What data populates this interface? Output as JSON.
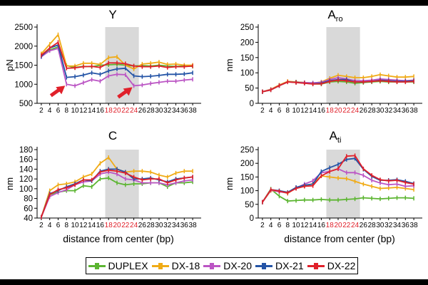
{
  "colors": {
    "DUPLEX": "#5cb531",
    "DX-18": "#f0ab16",
    "DX-20": "#bb55c4",
    "DX-21": "#2454a6",
    "DX-22": "#e0202a",
    "shade": "#d9d9d9",
    "highlight_ticks": "#e0202a",
    "arrow": "#e0202a"
  },
  "legend": [
    "DUPLEX",
    "DX-18",
    "DX-20",
    "DX-21",
    "DX-22"
  ],
  "chart_data": [
    {
      "id": "Y",
      "type": "line",
      "title": "Y",
      "title_sub": "",
      "xlabel": "",
      "ylabel": "pN",
      "categories": [
        2,
        4,
        6,
        8,
        10,
        12,
        14,
        16,
        18,
        20,
        22,
        24,
        26,
        28,
        30,
        32,
        34,
        36,
        38
      ],
      "highlight_ticks": [
        18,
        20,
        22,
        24
      ],
      "shaded_range": [
        17.2,
        25.2
      ],
      "ylim": [
        500,
        2500
      ],
      "yticks": [
        500,
        1000,
        1500,
        2000,
        2500
      ],
      "series": [
        {
          "name": "DUPLEX",
          "values": [
            1750,
            1900,
            1980,
            1490,
            1440,
            1470,
            1460,
            1500,
            1510,
            1520,
            1500,
            1480,
            1490,
            1480,
            1500,
            1480,
            1470,
            1480,
            1470
          ]
        },
        {
          "name": "DX-18",
          "values": [
            1800,
            2050,
            2300,
            1480,
            1480,
            1550,
            1550,
            1520,
            1700,
            1720,
            1500,
            1400,
            1530,
            1550,
            1580,
            1520,
            1530,
            1500,
            1500
          ]
        },
        {
          "name": "DX-20",
          "values": [
            1720,
            1880,
            1940,
            1000,
            960,
            1040,
            1120,
            1080,
            1220,
            1260,
            1250,
            960,
            980,
            1020,
            1050,
            1080,
            1080,
            1110,
            1130
          ]
        },
        {
          "name": "DX-21",
          "values": [
            1730,
            1950,
            2030,
            1180,
            1200,
            1240,
            1300,
            1260,
            1350,
            1400,
            1420,
            1220,
            1200,
            1210,
            1230,
            1260,
            1260,
            1270,
            1300
          ]
        },
        {
          "name": "DX-22",
          "values": [
            1760,
            1950,
            2100,
            1420,
            1430,
            1460,
            1470,
            1440,
            1560,
            1560,
            1540,
            1480,
            1460,
            1460,
            1480,
            1440,
            1460,
            1460,
            1480
          ]
        }
      ],
      "arrows_at": [
        {
          "x": 8,
          "y": 1000
        },
        {
          "x": 24,
          "y": 960
        }
      ]
    },
    {
      "id": "Aro",
      "type": "line",
      "title": "A",
      "title_sub": "ro",
      "xlabel": "",
      "ylabel": "nm",
      "categories": [
        2,
        4,
        6,
        8,
        10,
        12,
        14,
        16,
        18,
        20,
        22,
        24,
        26,
        28,
        30,
        32,
        34,
        36,
        38
      ],
      "highlight_ticks": [
        18,
        20,
        22,
        24
      ],
      "shaded_range": [
        17.2,
        25.2
      ],
      "ylim": [
        0,
        250
      ],
      "yticks": [
        0,
        50,
        100,
        150,
        200,
        250
      ],
      "series": [
        {
          "name": "DUPLEX",
          "values": [
            38,
            44,
            58,
            70,
            70,
            68,
            64,
            63,
            70,
            72,
            70,
            66,
            68,
            70,
            72,
            70,
            70,
            70,
            70
          ]
        },
        {
          "name": "DX-18",
          "values": [
            38,
            46,
            60,
            72,
            70,
            68,
            66,
            70,
            82,
            92,
            88,
            84,
            84,
            88,
            94,
            90,
            86,
            86,
            88
          ]
        },
        {
          "name": "DX-20",
          "values": [
            38,
            45,
            58,
            70,
            69,
            68,
            67,
            69,
            78,
            84,
            80,
            74,
            74,
            76,
            80,
            78,
            76,
            74,
            76
          ]
        },
        {
          "name": "DX-21",
          "values": [
            38,
            44,
            58,
            70,
            69,
            66,
            64,
            66,
            74,
            78,
            78,
            70,
            70,
            72,
            76,
            74,
            72,
            72,
            74
          ]
        },
        {
          "name": "DX-22",
          "values": [
            38,
            44,
            58,
            70,
            68,
            66,
            63,
            64,
            72,
            76,
            74,
            70,
            70,
            72,
            74,
            72,
            70,
            70,
            72
          ]
        }
      ]
    },
    {
      "id": "C",
      "type": "line",
      "title": "C",
      "title_sub": "",
      "xlabel": "distance from center (bp)",
      "ylabel": "nm",
      "categories": [
        2,
        4,
        6,
        8,
        10,
        12,
        14,
        16,
        18,
        20,
        22,
        24,
        26,
        28,
        30,
        32,
        34,
        36,
        38
      ],
      "highlight_ticks": [
        18,
        20,
        22,
        24
      ],
      "shaded_range": [
        17.2,
        25.2
      ],
      "ylim": [
        40,
        180
      ],
      "yticks": [
        40,
        60,
        80,
        100,
        120,
        140,
        160,
        180
      ],
      "series": [
        {
          "name": "DUPLEX",
          "values": [
            42,
            88,
            93,
            96,
            96,
            106,
            104,
            120,
            122,
            112,
            108,
            110,
            110,
            112,
            112,
            104,
            112,
            112,
            114
          ]
        },
        {
          "name": "DX-18",
          "values": [
            42,
            96,
            108,
            110,
            114,
            124,
            130,
            152,
            164,
            140,
            134,
            136,
            136,
            134,
            128,
            124,
            132,
            136,
            136
          ]
        },
        {
          "name": "DX-20",
          "values": [
            42,
            84,
            92,
            98,
            108,
            114,
            116,
            130,
            134,
            130,
            120,
            118,
            112,
            112,
            112,
            108,
            112,
            116,
            118
          ]
        },
        {
          "name": "DX-21",
          "values": [
            42,
            90,
            96,
            104,
            110,
            118,
            116,
            136,
            140,
            140,
            134,
            120,
            120,
            122,
            118,
            114,
            120,
            122,
            124
          ]
        },
        {
          "name": "DX-22",
          "values": [
            42,
            88,
            98,
            102,
            108,
            118,
            118,
            134,
            138,
            136,
            132,
            124,
            118,
            120,
            120,
            112,
            118,
            122,
            124
          ]
        }
      ]
    },
    {
      "id": "Ati",
      "type": "line",
      "title": "A",
      "title_sub": "ti",
      "xlabel": "distance from center (bp)",
      "ylabel": "nm",
      "categories": [
        2,
        4,
        6,
        8,
        10,
        12,
        14,
        16,
        18,
        20,
        22,
        24,
        26,
        28,
        30,
        32,
        34,
        36,
        38
      ],
      "highlight_ticks": [
        18,
        20,
        22,
        24
      ],
      "shaded_range": [
        17.2,
        25.2
      ],
      "ylim": [
        0,
        250
      ],
      "yticks": [
        0,
        50,
        100,
        150,
        200,
        250
      ],
      "series": [
        {
          "name": "DUPLEX",
          "values": [
            58,
            106,
            80,
            62,
            64,
            66,
            66,
            68,
            66,
            66,
            68,
            70,
            74,
            72,
            70,
            72,
            74,
            74,
            72
          ]
        },
        {
          "name": "DX-18",
          "values": [
            58,
            100,
            98,
            90,
            110,
            116,
            126,
            154,
            150,
            146,
            144,
            134,
            124,
            116,
            108,
            110,
            112,
            108,
            104
          ]
        },
        {
          "name": "DX-20",
          "values": [
            58,
            102,
            96,
            92,
            110,
            124,
            136,
            166,
            170,
            180,
            166,
            166,
            156,
            138,
            128,
            122,
            124,
            116,
            118
          ]
        },
        {
          "name": "DX-21",
          "values": [
            58,
            104,
            100,
            94,
            112,
            120,
            124,
            170,
            184,
            196,
            214,
            218,
            178,
            152,
            138,
            138,
            140,
            134,
            126
          ]
        },
        {
          "name": "DX-22",
          "values": [
            58,
            104,
            98,
            92,
            108,
            116,
            118,
            154,
            170,
            180,
            226,
            228,
            180,
            156,
            140,
            136,
            138,
            130,
            124
          ]
        }
      ]
    }
  ]
}
